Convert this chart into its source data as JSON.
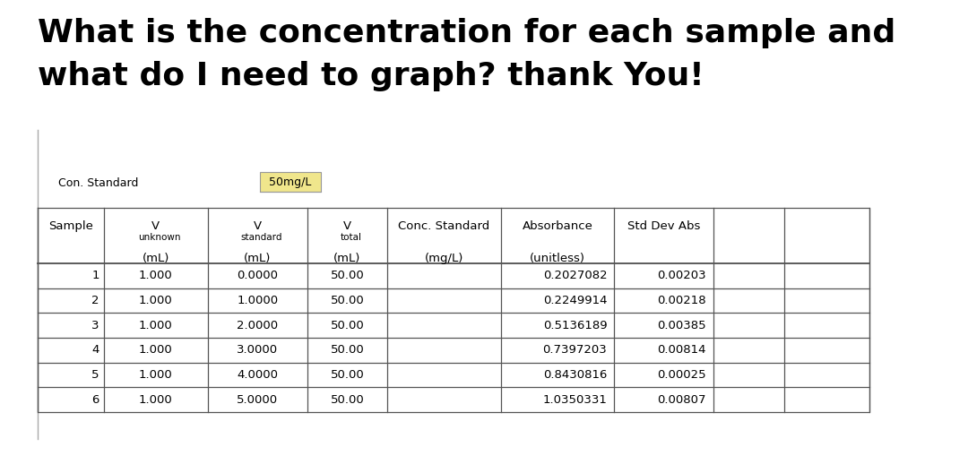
{
  "title_line1": "What is the concentration for each sample and",
  "title_line2": "what do I need to graph? thank You!",
  "con_standard_label": "Con. Standard",
  "con_standard_value": "50mg/L",
  "rows": [
    [
      "1",
      "1.000",
      "0.0000",
      "50.00",
      "",
      "0.2027082",
      "0.00203",
      "",
      ""
    ],
    [
      "2",
      "1.000",
      "1.0000",
      "50.00",
      "",
      "0.2249914",
      "0.00218",
      "",
      ""
    ],
    [
      "3",
      "1.000",
      "2.0000",
      "50.00",
      "",
      "0.5136189",
      "0.00385",
      "",
      ""
    ],
    [
      "4",
      "1.000",
      "3.0000",
      "50.00",
      "",
      "0.7397203",
      "0.00814",
      "",
      ""
    ],
    [
      "5",
      "1.000",
      "4.0000",
      "50.00",
      "",
      "0.8430816",
      "0.00025",
      "",
      ""
    ],
    [
      "6",
      "1.000",
      "5.0000",
      "50.00",
      "",
      "1.0350331",
      "0.00807",
      "",
      ""
    ]
  ],
  "bg_color": "#ffffff",
  "title_fontsize": 26,
  "table_fontsize": 9.5,
  "sub_fontsize": 7.5,
  "con_std_value_bg": "#f0e68c",
  "line_color": "#555555",
  "lw": 0.9,
  "fig_width": 10.8,
  "fig_height": 5.28,
  "dpi": 100
}
